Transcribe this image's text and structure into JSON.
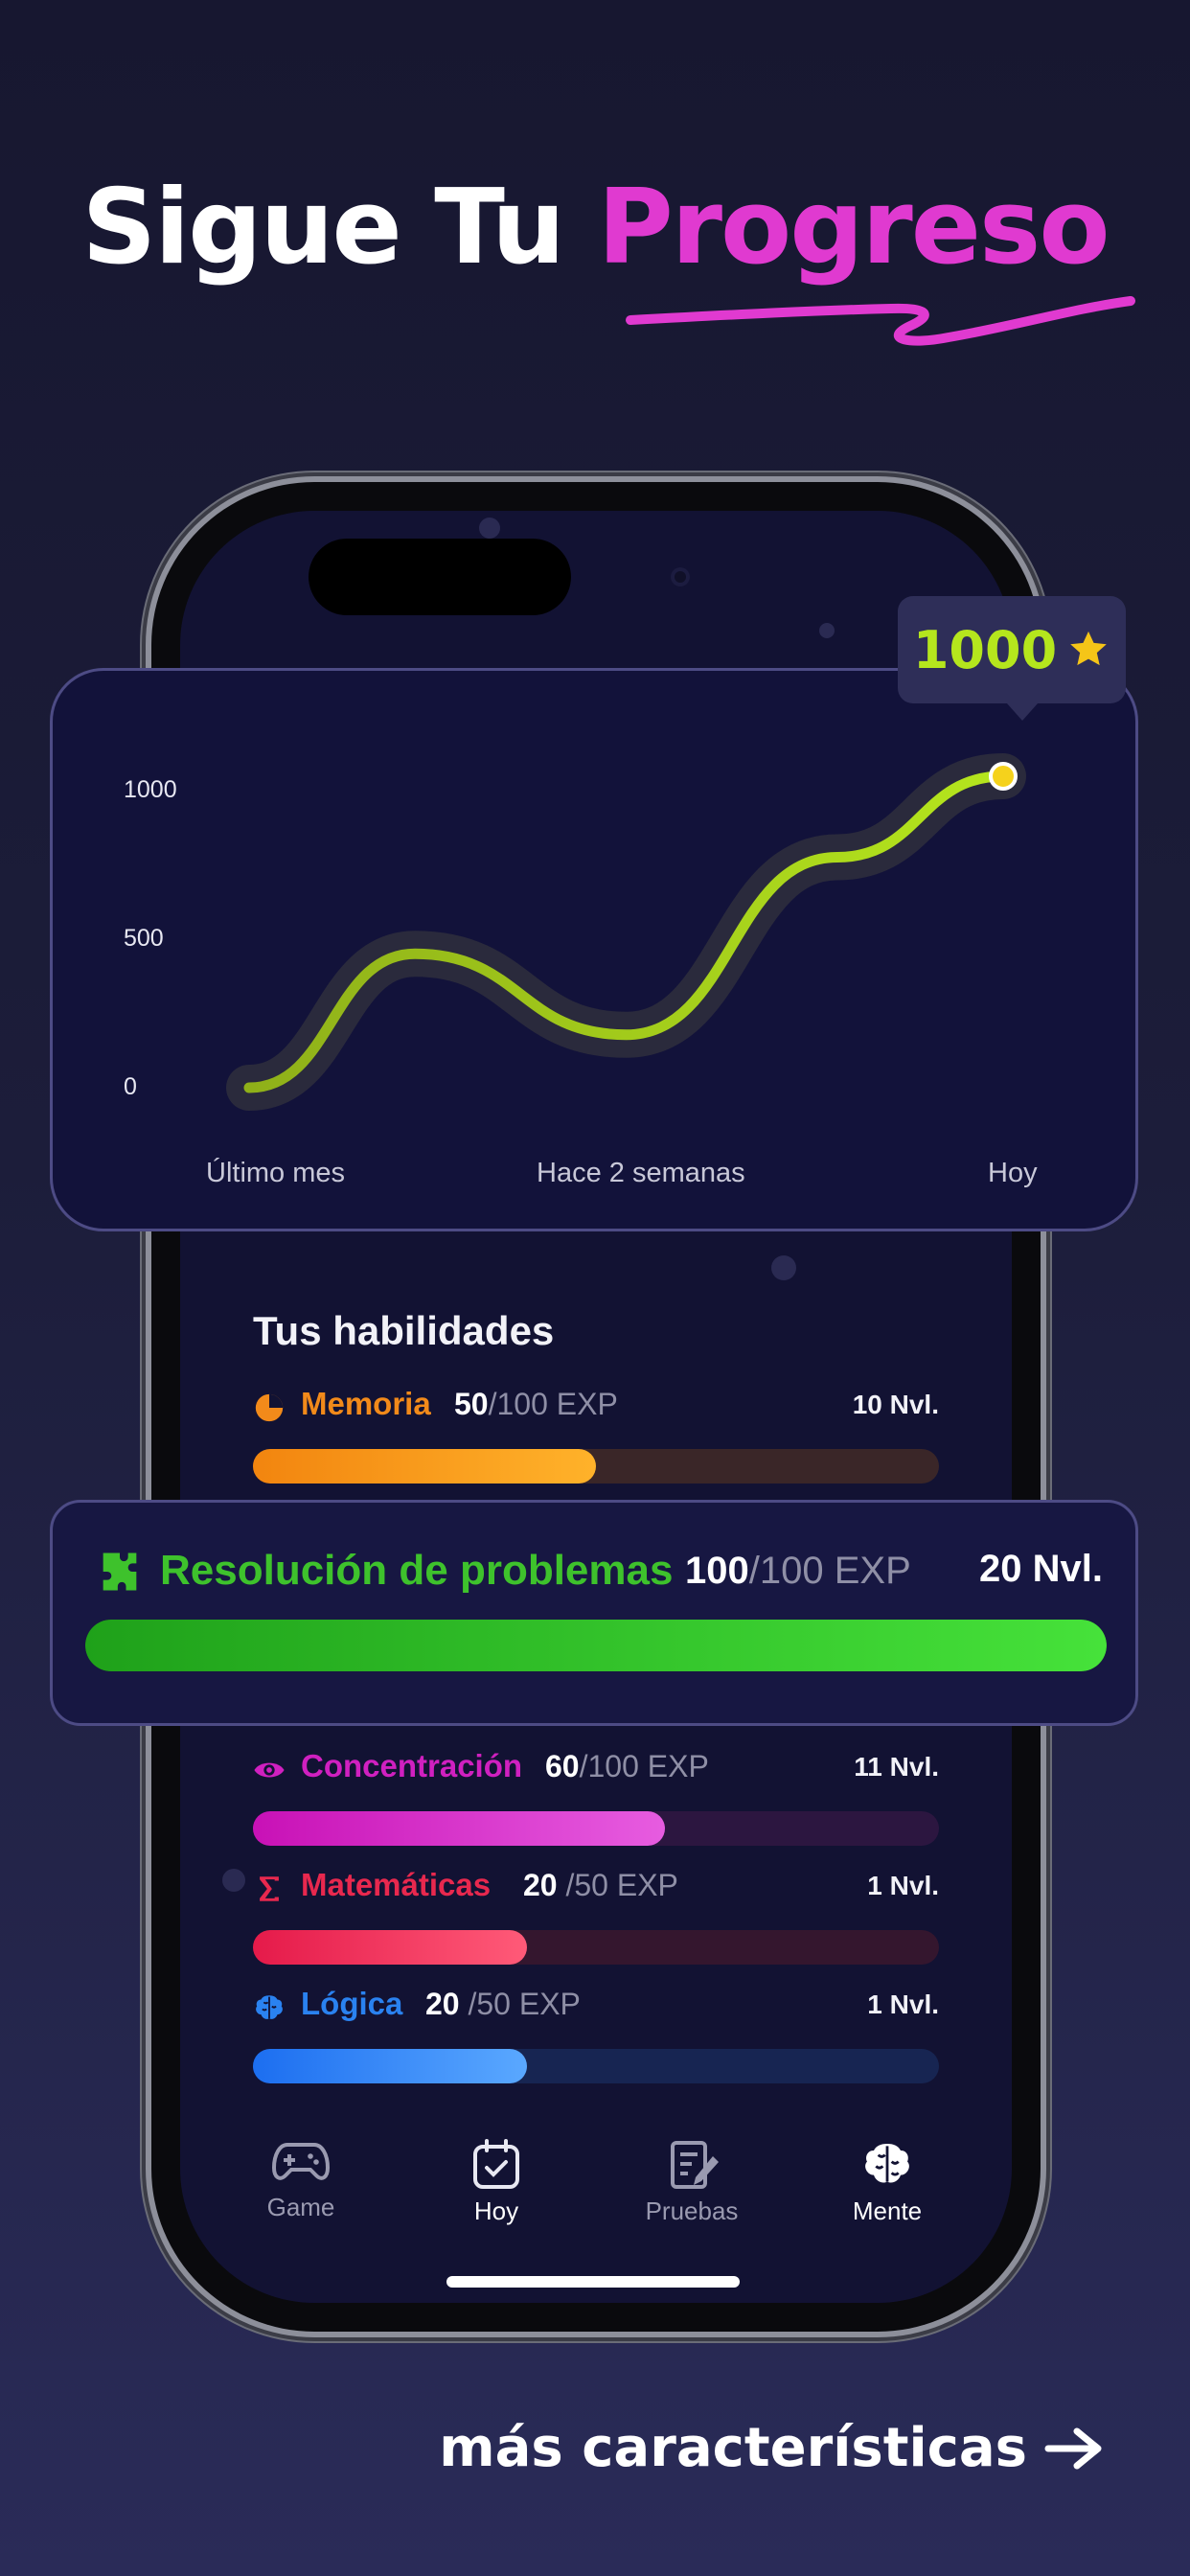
{
  "header": {
    "title_part1": "Sigue Tu",
    "title_part2": "Progreso"
  },
  "chart_badge": {
    "value": "1000",
    "icon": "star-icon"
  },
  "chart_data": {
    "type": "line",
    "y_ticks": [
      "1000",
      "500",
      "0"
    ],
    "x_labels": [
      "Último mes",
      "Hace 2 semanas",
      "Hoy"
    ],
    "ylim": [
      0,
      1000
    ],
    "series": [
      {
        "x": [
          0,
          0.22,
          0.5,
          0.78,
          1.0
        ],
        "values": [
          0,
          430,
          170,
          740,
          1000
        ]
      }
    ],
    "colors": {
      "line": "#b5e61d",
      "glow": "#2a2a3c",
      "endpoint": "#f5d21c"
    }
  },
  "skills": {
    "title": "Tus habilidades",
    "items": [
      {
        "name": "Memoria",
        "exp": "50",
        "max": "/100 EXP",
        "level": "10 Nvl.",
        "progress": 0.5,
        "color": "#f28a1a",
        "icon": "clock-icon"
      },
      {
        "name": "Concentración",
        "exp": "60",
        "max": "/100 EXP",
        "level": "11 Nvl.",
        "progress": 0.6,
        "color": "#d020c0",
        "icon": "eye-icon"
      },
      {
        "name": "Matemáticas",
        "exp": "20",
        "max": "/50 EXP",
        "level": "1 Nvl.",
        "progress": 0.4,
        "color": "#e8284e",
        "icon": "sigma-icon"
      },
      {
        "name": "Lógica",
        "exp": "20",
        "max": "/50 EXP",
        "level": "1 Nvl.",
        "progress": 0.4,
        "color": "#2a82f0",
        "icon": "brain-icon"
      }
    ]
  },
  "highlight": {
    "name": "Resolución de problemas",
    "exp": "100",
    "max": "/100 EXP",
    "level": "20 Nvl.",
    "progress": 1.0,
    "icon": "puzzle-icon"
  },
  "tabs": [
    {
      "label": "Game",
      "icon": "gamepad-icon"
    },
    {
      "label": "Hoy",
      "icon": "calendar-check-icon"
    },
    {
      "label": "Pruebas",
      "icon": "test-sheet-icon"
    },
    {
      "label": "Mente",
      "icon": "brain-icon"
    }
  ],
  "footer": {
    "more_label": "más características"
  }
}
